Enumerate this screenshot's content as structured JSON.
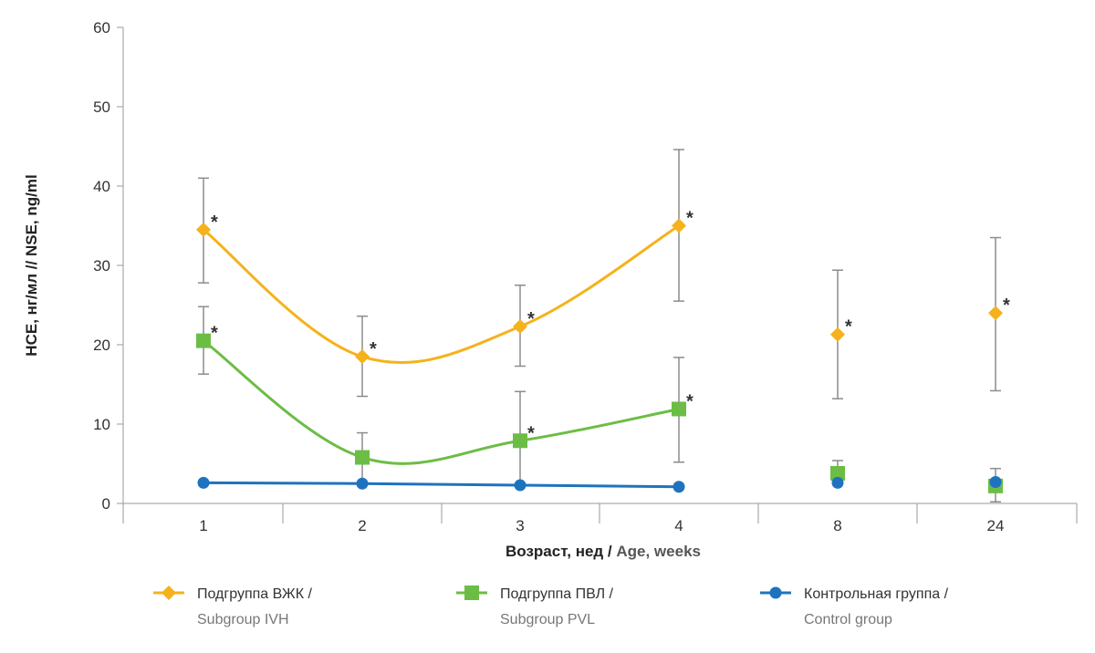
{
  "chart_data": {
    "type": "line",
    "categories": [
      "1",
      "2",
      "3",
      "4",
      "8",
      "24"
    ],
    "ylabel": {
      "primary": "НСЕ, нг/мл // NSE, ng/ml"
    },
    "xlabel": {
      "ru": "Возраст, нед /",
      "en": "Age, weeks"
    },
    "ylim": [
      0,
      60
    ],
    "yticks": [
      0,
      10,
      20,
      30,
      40,
      50,
      60
    ],
    "grid": false,
    "legend_position": "bottom",
    "significance_marker": "*",
    "series": [
      {
        "key": "ivh",
        "name_ru": "Подгруппа ВЖК /",
        "name_en": "Subgroup IVH",
        "color": "#f5b21c",
        "marker": "diamond",
        "values": [
          34.5,
          18.5,
          22.3,
          35.0,
          21.3,
          24.0
        ],
        "error_low": [
          27.8,
          13.5,
          17.3,
          25.5,
          13.2,
          14.2
        ],
        "error_high": [
          41.0,
          23.6,
          27.5,
          44.6,
          29.4,
          33.5
        ],
        "significant": [
          true,
          true,
          true,
          true,
          true,
          true
        ],
        "connected_points": 4
      },
      {
        "key": "pvl",
        "name_ru": "Подгруппа ПВЛ /",
        "name_en": "Subgroup PVL",
        "color": "#6cbd45",
        "marker": "square",
        "values": [
          20.5,
          5.8,
          7.9,
          11.9,
          3.8,
          2.2
        ],
        "error_low": [
          16.3,
          2.7,
          2.3,
          5.2,
          3.8,
          0.2
        ],
        "error_high": [
          24.8,
          8.9,
          14.1,
          18.4,
          5.4,
          4.4
        ],
        "significant": [
          true,
          false,
          true,
          true,
          false,
          false
        ],
        "connected_points": 4
      },
      {
        "key": "control",
        "name_ru": "Контрольная группа /",
        "name_en": "Control group",
        "color": "#1e73be",
        "marker": "circle",
        "values": [
          2.6,
          2.5,
          2.3,
          2.1,
          2.6,
          2.7
        ],
        "error_low": null,
        "error_high": null,
        "significant": [
          false,
          false,
          false,
          false,
          false,
          false
        ],
        "connected_points": 4
      }
    ]
  }
}
